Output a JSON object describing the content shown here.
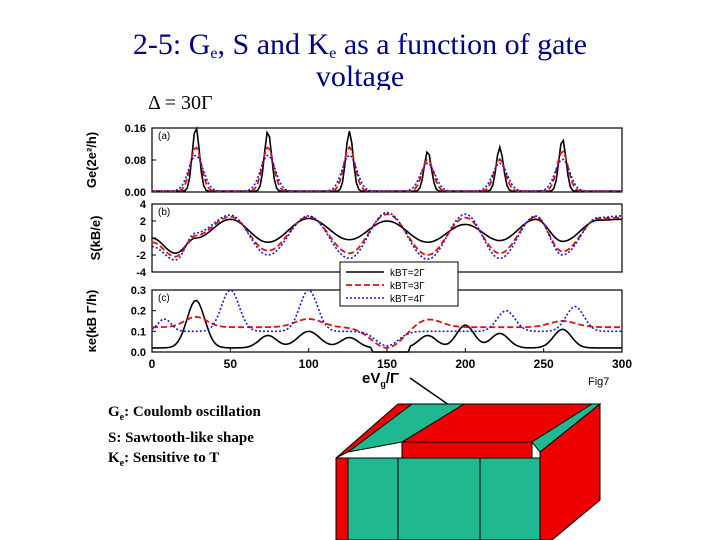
{
  "slide": {
    "title_prefix": "2-5: G",
    "title_sub1": "e",
    "title_mid": ", S and K",
    "title_sub2": "e",
    "title_suffix": " as a function of gate",
    "title_line2": "voltage",
    "delta_label": "Δ = 30Γ",
    "fig_label": "Fig7",
    "notes": [
      {
        "symbol": "G",
        "sub": "e",
        "text": ": Coulomb oscillation"
      },
      {
        "symbol": "S",
        "sub": "",
        "text": ": Sawtooth-like shape"
      },
      {
        "symbol": "K",
        "sub": "e",
        "text": ": Sensitive to T"
      }
    ]
  },
  "colors": {
    "title": "#000080",
    "series_2": "#000000",
    "series_3": "#dd1111",
    "series_4": "#1a1acc",
    "device_red": "#ee0000",
    "device_teal": "#20b890"
  },
  "chart_data": [
    {
      "type": "line",
      "panel": "(a)",
      "ylabel": "Ge(2e²/h)",
      "xlim": [
        0,
        300
      ],
      "ylim": [
        0.0,
        0.16
      ],
      "yticks": [
        "0.16",
        "0.08",
        "0.00"
      ],
      "peaks_x": [
        28,
        74,
        126,
        176,
        222,
        262
      ],
      "series": [
        {
          "name": "kBT=2Γ",
          "peak_heights": [
            0.16,
            0.15,
            0.15,
            0.1,
            0.11,
            0.13
          ]
        },
        {
          "name": "kBT=3Γ",
          "peak_heights": [
            0.11,
            0.11,
            0.11,
            0.08,
            0.08,
            0.1
          ]
        },
        {
          "name": "kBT=4Γ",
          "peak_heights": [
            0.09,
            0.09,
            0.09,
            0.07,
            0.07,
            0.08
          ]
        }
      ]
    },
    {
      "type": "line",
      "panel": "(b)",
      "ylabel": "S(kB/e)",
      "xlim": [
        0,
        300
      ],
      "ylim": [
        -4,
        4
      ],
      "yticks": [
        "4",
        "2",
        "0",
        "-2",
        "-4"
      ],
      "x": [
        0,
        15,
        28,
        50,
        74,
        100,
        126,
        150,
        176,
        200,
        222,
        245,
        262,
        285,
        300
      ],
      "series": [
        {
          "name": "kBT=2Γ",
          "values": [
            0,
            -1.8,
            0,
            2.2,
            -0.5,
            2.3,
            -0.2,
            2.0,
            -0.5,
            1.6,
            -0.3,
            2.2,
            -0.4,
            2.1,
            2.2
          ]
        },
        {
          "name": "kBT=3Γ",
          "values": [
            -0.5,
            -2.2,
            0.3,
            2.5,
            -1.5,
            2.5,
            -1.8,
            2.8,
            -2.0,
            2.4,
            -1.8,
            2.5,
            -1.6,
            2.3,
            2.4
          ]
        },
        {
          "name": "kBT=4Γ",
          "values": [
            -1.0,
            -2.6,
            0.6,
            2.7,
            -2.0,
            2.6,
            -2.4,
            3.0,
            -2.5,
            2.8,
            -2.4,
            2.6,
            -2.0,
            2.4,
            2.6
          ]
        }
      ]
    },
    {
      "type": "line",
      "panel": "(c)",
      "ylabel": "κe(kB Γ/h)",
      "xlabel": "eVg/Γ",
      "xlim": [
        0,
        300
      ],
      "ylim": [
        0.0,
        0.3
      ],
      "yticks": [
        "0.3",
        "0.2",
        "0.1",
        "0.0"
      ],
      "xticks": [
        "0",
        "50",
        "100",
        "150",
        "200",
        "250",
        "300"
      ],
      "series": [
        {
          "name": "kBT=2Γ",
          "description_values": "peaks near x=28 (0.25), 100 (0.10), 200 (0.13)"
        },
        {
          "name": "kBT=3Γ",
          "description_values": "broad baseline ~0.12–0.16"
        },
        {
          "name": "kBT=4Γ",
          "description_values": "peaks near x=50 (0.30), 100 (0.30), 226 (0.20), 270 (0.22)"
        }
      ],
      "legend": [
        "kBT=2Γ",
        "kBT=3Γ",
        "kBT=4Γ"
      ],
      "legend_position": "top-right"
    }
  ]
}
